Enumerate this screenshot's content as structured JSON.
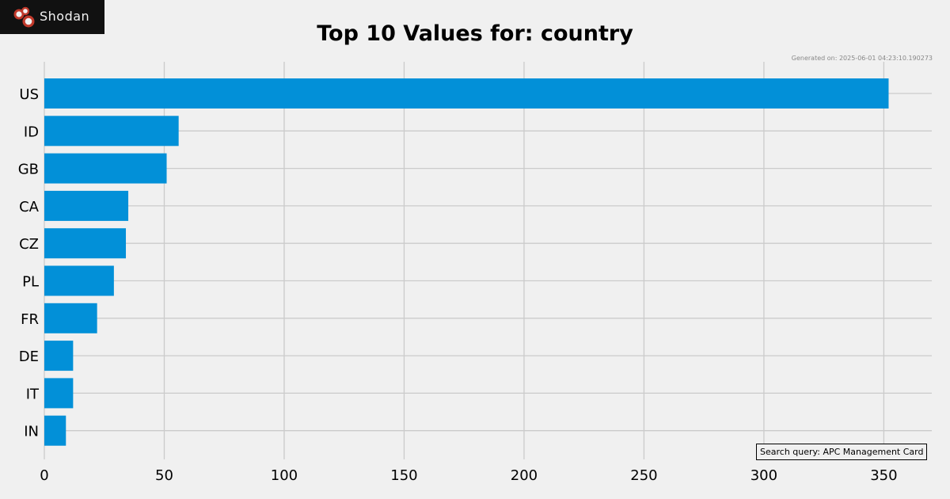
{
  "logo": {
    "text": "Shodan",
    "icon": "shodan-logo-icon"
  },
  "header": {
    "title": "Top 10 Values for: country",
    "generated": "Generated on: 2025-06-01 04:23:10.190273"
  },
  "search_query": "Search query: APC Management Card",
  "colors": {
    "bar": "#0290d8",
    "grid": "#cbcbcb",
    "background": "#f0f0f0"
  },
  "chart_data": {
    "type": "bar",
    "orientation": "horizontal",
    "title": "Top 10 Values for: country",
    "categories": [
      "US",
      "ID",
      "GB",
      "CA",
      "CZ",
      "PL",
      "FR",
      "DE",
      "IT",
      "IN"
    ],
    "values": [
      352,
      56,
      51,
      35,
      34,
      29,
      22,
      12,
      12,
      9
    ],
    "xlim": [
      0,
      370
    ],
    "xticks": [
      "0",
      "50",
      "100",
      "150",
      "200",
      "250",
      "300",
      "350"
    ],
    "xlabel": "",
    "ylabel": "",
    "grid": true
  }
}
